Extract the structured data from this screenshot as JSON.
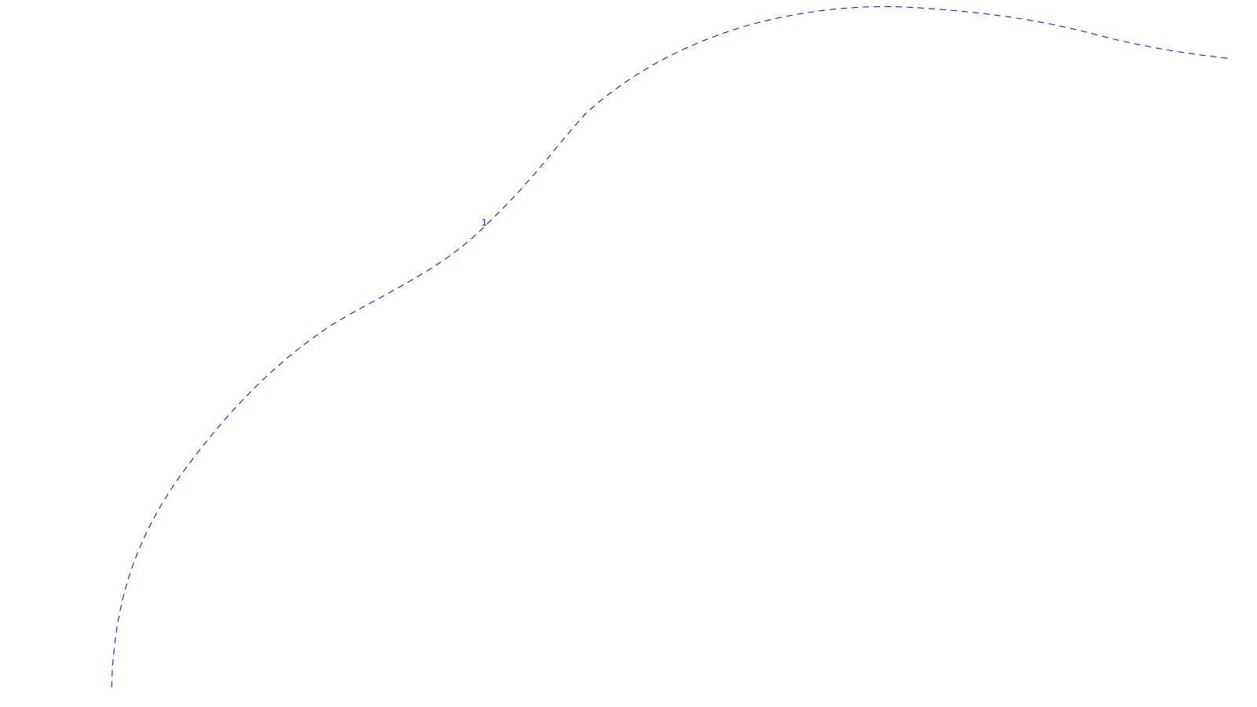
{
  "diagram": {
    "line_color": "#0000ff",
    "background_color": "#ffffff",
    "line_style": "dashed",
    "curve": {
      "label": "1"
    }
  }
}
